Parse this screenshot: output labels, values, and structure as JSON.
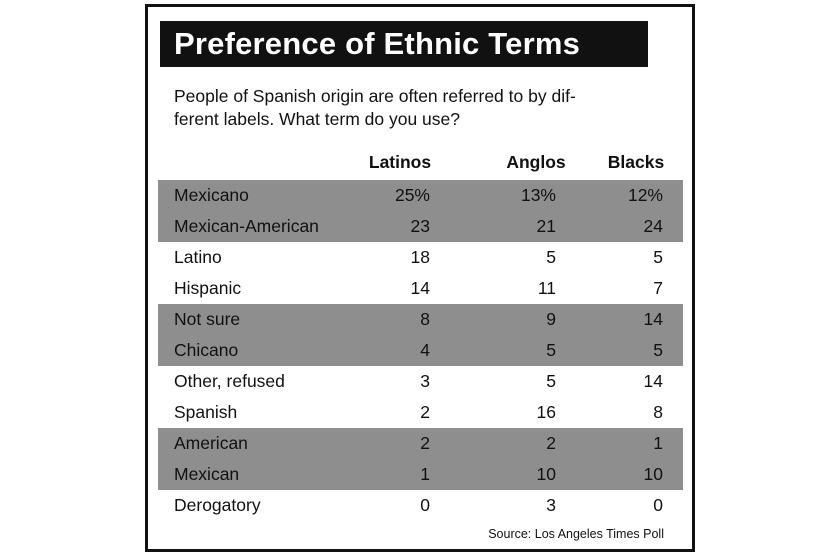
{
  "title": "Preference of Ethnic Terms",
  "question_lines": [
    "People of Spanish origin are often referred to by dif-",
    "ferent labels. What term do you use?"
  ],
  "source": "Source: Los Angeles Times Poll",
  "colors": {
    "title_bg": "#111111",
    "band": "#8e8e8e",
    "text": "#111111"
  },
  "chart_data": {
    "type": "table",
    "columns": [
      "Latinos",
      "Anglos",
      "Blacks"
    ],
    "rows": [
      {
        "label": "Mexicano",
        "values": [
          "25%",
          "13%",
          "12%"
        ]
      },
      {
        "label": "Mexican-American",
        "values": [
          "23",
          "21",
          "24"
        ]
      },
      {
        "label": "Latino",
        "values": [
          "18",
          "5",
          "5"
        ]
      },
      {
        "label": "Hispanic",
        "values": [
          "14",
          "11",
          "7"
        ]
      },
      {
        "label": "Not sure",
        "values": [
          "8",
          "9",
          "14"
        ]
      },
      {
        "label": "Chicano",
        "values": [
          "4",
          "5",
          "5"
        ]
      },
      {
        "label": "Other, refused",
        "values": [
          "3",
          "5",
          "14"
        ]
      },
      {
        "label": "Spanish",
        "values": [
          "2",
          "16",
          "8"
        ]
      },
      {
        "label": "American",
        "values": [
          "2",
          "2",
          "1"
        ]
      },
      {
        "label": "Mexican",
        "values": [
          "1",
          "10",
          "10"
        ]
      },
      {
        "label": "Derogatory",
        "values": [
          "0",
          "3",
          "0"
        ]
      }
    ],
    "shaded_row_groups": [
      [
        0,
        1
      ],
      [
        4,
        5
      ],
      [
        8,
        9
      ]
    ]
  }
}
